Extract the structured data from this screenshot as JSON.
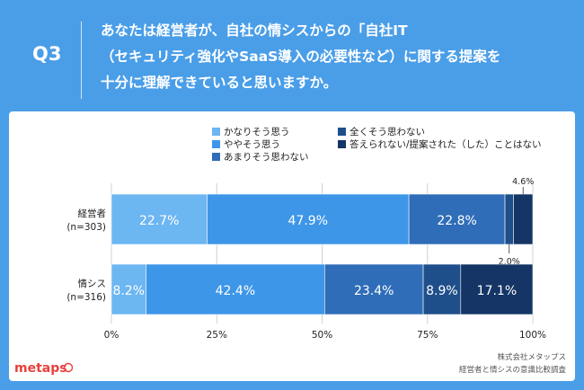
{
  "question": {
    "label": "Q3",
    "lines": [
      "あなたは経営者が、自社の情シスからの「自社IT",
      "（セキュリティ強化やSaaS導入の必要性など）に関する提案を",
      "十分に理解できていると思いますか。"
    ]
  },
  "chart_data": {
    "type": "bar",
    "orientation": "horizontal-stacked-100",
    "categories": [
      {
        "name": "経営者",
        "n": "(n=303)"
      },
      {
        "name": "情シス",
        "n": "(n=316)"
      }
    ],
    "series": [
      {
        "name": "かなりそう思う",
        "color": "#6cb6f2",
        "values": [
          22.7,
          8.2
        ]
      },
      {
        "name": "ややそう思う",
        "color": "#3d96e8",
        "values": [
          47.9,
          42.4
        ]
      },
      {
        "name": "あまりそう思わない",
        "color": "#2f6db8",
        "values": [
          22.8,
          23.4
        ]
      },
      {
        "name": "全くそう思わない",
        "color": "#1f4f8a",
        "values": [
          2.0,
          8.9
        ]
      },
      {
        "name": "答えられない/提案された（した）ことはない",
        "color": "#143566",
        "values": [
          4.6,
          17.1
        ]
      }
    ],
    "value_labels": [
      [
        "22.7%",
        "47.9%",
        "22.8%",
        "2.0%",
        "4.6%"
      ],
      [
        "8.2%",
        "42.4%",
        "23.4%",
        "8.9%",
        "17.1%"
      ]
    ],
    "xlim": [
      0,
      100
    ],
    "x_ticks": [
      "0%",
      "25%",
      "50%",
      "75%",
      "100%"
    ],
    "legend": {
      "placement": "top-right",
      "columns": 2
    }
  },
  "footer": {
    "logo": "metaps",
    "source_company": "株式会社メタップス",
    "source_survey": "経営者と情シスの意識比較調査"
  }
}
